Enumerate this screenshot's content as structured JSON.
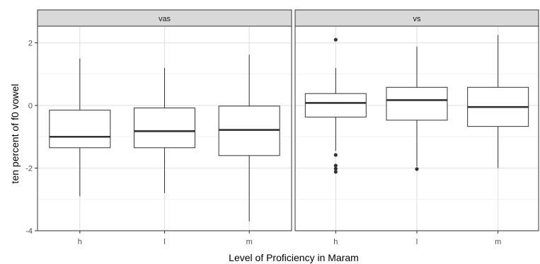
{
  "chart_data": {
    "type": "boxplot",
    "title": "",
    "xlabel": "Level of Proficiency in Maram",
    "ylabel": "ten percent of f0 vowel",
    "ylim": [
      -4,
      2.5
    ],
    "yticks": [
      -4,
      -2,
      0,
      2
    ],
    "categories": [
      "h",
      "l",
      "m"
    ],
    "grid": true,
    "facets": [
      {
        "name": "vas",
        "boxes": [
          {
            "category": "h",
            "min": -2.9,
            "q1": -1.35,
            "median": -1.0,
            "q3": -0.15,
            "max": 1.5,
            "outliers": []
          },
          {
            "category": "l",
            "min": -2.8,
            "q1": -1.35,
            "median": -0.82,
            "q3": -0.08,
            "max": 1.2,
            "outliers": []
          },
          {
            "category": "m",
            "min": -3.7,
            "q1": -1.6,
            "median": -0.78,
            "q3": -0.02,
            "max": 1.62,
            "outliers": []
          }
        ]
      },
      {
        "name": "vs",
        "boxes": [
          {
            "category": "h",
            "min": -1.45,
            "q1": -0.37,
            "median": 0.08,
            "q3": 0.38,
            "max": 1.2,
            "outliers": [
              2.1,
              -1.58,
              -1.92,
              -2.02,
              -2.12
            ]
          },
          {
            "category": "l",
            "min": -1.95,
            "q1": -0.47,
            "median": 0.17,
            "q3": 0.58,
            "max": 1.88,
            "outliers": [
              -2.03
            ]
          },
          {
            "category": "m",
            "min": -2.0,
            "q1": -0.67,
            "median": -0.05,
            "q3": 0.58,
            "max": 2.25,
            "outliers": []
          }
        ]
      }
    ]
  }
}
